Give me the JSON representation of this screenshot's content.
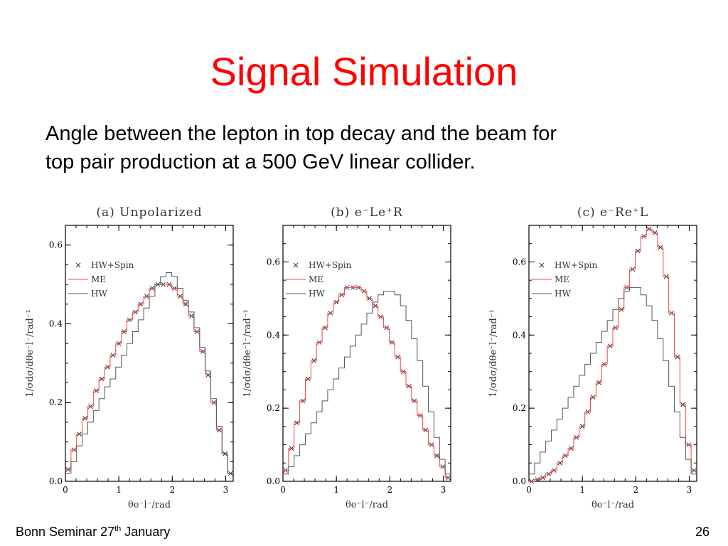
{
  "slide": {
    "title": "Signal Simulation",
    "subtitle_line1": "Angle between the lepton in top decay and the beam for",
    "subtitle_line2": "top pair production at a 500 GeV linear collider.",
    "footer_text": "Bonn Seminar 27",
    "footer_sup": "th",
    "footer_text2": " January",
    "page_number": "26"
  },
  "colors": {
    "title": "#ff0000",
    "me": "#ff4040",
    "hw": "#555555",
    "markers": "#333333"
  },
  "chart_data": [
    {
      "type": "line",
      "panel": "(a)",
      "title": "(a) Unpolarized",
      "xlabel": "θe⁻l⁻/rad",
      "ylabel": "1/σdσ/dθe⁻l⁻/rad⁻¹",
      "xlim": [
        0,
        3.14
      ],
      "ylim": [
        0,
        0.65
      ],
      "xticks": [
        0,
        1,
        2,
        3
      ],
      "yticks": [
        0.0,
        0.2,
        0.4,
        0.6
      ],
      "legend": [
        "HW+Spin",
        "ME",
        "HW"
      ],
      "legend_position": "top-left",
      "series": [
        {
          "name": "HW+Spin",
          "style": "markers",
          "x": [
            0.05,
            0.16,
            0.26,
            0.37,
            0.47,
            0.58,
            0.68,
            0.79,
            0.89,
            1.0,
            1.1,
            1.2,
            1.31,
            1.41,
            1.52,
            1.62,
            1.73,
            1.83,
            1.94,
            2.04,
            2.15,
            2.25,
            2.36,
            2.46,
            2.57,
            2.67,
            2.78,
            2.88,
            2.99,
            3.09
          ],
          "y": [
            0.03,
            0.08,
            0.12,
            0.16,
            0.19,
            0.23,
            0.26,
            0.29,
            0.32,
            0.35,
            0.38,
            0.41,
            0.43,
            0.45,
            0.47,
            0.49,
            0.5,
            0.5,
            0.5,
            0.49,
            0.47,
            0.45,
            0.42,
            0.38,
            0.33,
            0.27,
            0.2,
            0.13,
            0.07,
            0.02
          ]
        },
        {
          "name": "ME",
          "style": "step",
          "x": [
            0.05,
            0.16,
            0.26,
            0.37,
            0.47,
            0.58,
            0.68,
            0.79,
            0.89,
            1.0,
            1.1,
            1.2,
            1.31,
            1.41,
            1.52,
            1.62,
            1.73,
            1.83,
            1.94,
            2.04,
            2.15,
            2.25,
            2.36,
            2.46,
            2.57,
            2.67,
            2.78,
            2.88,
            2.99,
            3.09
          ],
          "y": [
            0.03,
            0.08,
            0.12,
            0.16,
            0.19,
            0.23,
            0.26,
            0.29,
            0.32,
            0.35,
            0.38,
            0.41,
            0.43,
            0.45,
            0.47,
            0.49,
            0.5,
            0.5,
            0.5,
            0.49,
            0.47,
            0.45,
            0.42,
            0.38,
            0.33,
            0.27,
            0.2,
            0.13,
            0.07,
            0.02
          ]
        },
        {
          "name": "HW",
          "style": "step",
          "x": [
            0.05,
            0.16,
            0.26,
            0.37,
            0.47,
            0.58,
            0.68,
            0.79,
            0.89,
            1.0,
            1.1,
            1.2,
            1.31,
            1.41,
            1.52,
            1.62,
            1.73,
            1.83,
            1.94,
            2.04,
            2.15,
            2.25,
            2.36,
            2.46,
            2.57,
            2.67,
            2.78,
            2.88,
            2.99,
            3.09
          ],
          "y": [
            0.02,
            0.05,
            0.09,
            0.12,
            0.15,
            0.18,
            0.21,
            0.24,
            0.26,
            0.29,
            0.32,
            0.35,
            0.38,
            0.41,
            0.44,
            0.47,
            0.5,
            0.52,
            0.53,
            0.52,
            0.49,
            0.46,
            0.43,
            0.39,
            0.34,
            0.28,
            0.21,
            0.14,
            0.07,
            0.02
          ]
        }
      ]
    },
    {
      "type": "line",
      "panel": "(b)",
      "title": "(b) e⁻Le⁺R",
      "xlabel": "θe⁻l⁻/rad",
      "ylabel": "1/σdσ/dθe⁻l⁻/rad⁻¹",
      "xlim": [
        0,
        3.14
      ],
      "ylim": [
        0,
        0.7
      ],
      "xticks": [
        0,
        1,
        2,
        3
      ],
      "yticks": [
        0.0,
        0.2,
        0.4,
        0.6
      ],
      "legend": [
        "HW+Spin",
        "ME",
        "HW"
      ],
      "legend_position": "top-left",
      "series": [
        {
          "name": "HW+Spin",
          "style": "markers",
          "x": [
            0.05,
            0.16,
            0.26,
            0.37,
            0.47,
            0.58,
            0.68,
            0.79,
            0.89,
            1.0,
            1.1,
            1.2,
            1.31,
            1.41,
            1.52,
            1.62,
            1.73,
            1.83,
            1.94,
            2.04,
            2.15,
            2.25,
            2.36,
            2.46,
            2.57,
            2.67,
            2.78,
            2.88,
            2.99,
            3.09
          ],
          "y": [
            0.03,
            0.09,
            0.16,
            0.22,
            0.28,
            0.33,
            0.38,
            0.42,
            0.46,
            0.49,
            0.51,
            0.53,
            0.53,
            0.53,
            0.52,
            0.5,
            0.48,
            0.45,
            0.42,
            0.38,
            0.34,
            0.3,
            0.26,
            0.22,
            0.18,
            0.14,
            0.1,
            0.07,
            0.04,
            0.01
          ]
        },
        {
          "name": "ME",
          "style": "step",
          "x": [
            0.05,
            0.16,
            0.26,
            0.37,
            0.47,
            0.58,
            0.68,
            0.79,
            0.89,
            1.0,
            1.1,
            1.2,
            1.31,
            1.41,
            1.52,
            1.62,
            1.73,
            1.83,
            1.94,
            2.04,
            2.15,
            2.25,
            2.36,
            2.46,
            2.57,
            2.67,
            2.78,
            2.88,
            2.99,
            3.09
          ],
          "y": [
            0.03,
            0.09,
            0.16,
            0.22,
            0.28,
            0.33,
            0.38,
            0.42,
            0.46,
            0.49,
            0.51,
            0.53,
            0.53,
            0.53,
            0.52,
            0.5,
            0.48,
            0.45,
            0.42,
            0.38,
            0.34,
            0.3,
            0.26,
            0.22,
            0.18,
            0.14,
            0.1,
            0.07,
            0.04,
            0.01
          ]
        },
        {
          "name": "HW",
          "style": "step",
          "x": [
            0.05,
            0.16,
            0.26,
            0.37,
            0.47,
            0.58,
            0.68,
            0.79,
            0.89,
            1.0,
            1.1,
            1.2,
            1.31,
            1.41,
            1.52,
            1.62,
            1.73,
            1.83,
            1.94,
            2.04,
            2.15,
            2.25,
            2.36,
            2.46,
            2.57,
            2.67,
            2.78,
            2.88,
            2.99,
            3.09
          ],
          "y": [
            0.02,
            0.04,
            0.07,
            0.1,
            0.13,
            0.16,
            0.19,
            0.22,
            0.25,
            0.28,
            0.31,
            0.34,
            0.37,
            0.4,
            0.43,
            0.46,
            0.49,
            0.51,
            0.52,
            0.52,
            0.51,
            0.48,
            0.44,
            0.39,
            0.33,
            0.26,
            0.19,
            0.12,
            0.06,
            0.02
          ]
        }
      ]
    },
    {
      "type": "line",
      "panel": "(c)",
      "title": "(c) e⁻Re⁺L",
      "xlabel": "θe⁻l⁻/rad",
      "ylabel": "1/σdσ/dθe⁻l⁻/rad⁻¹",
      "xlim": [
        0,
        3.14
      ],
      "ylim": [
        0,
        0.7
      ],
      "xticks": [
        0,
        1,
        2,
        3
      ],
      "yticks": [
        0.0,
        0.2,
        0.4,
        0.6
      ],
      "legend": [
        "HW+Spin",
        "ME",
        "HW"
      ],
      "legend_position": "top-left",
      "series": [
        {
          "name": "HW+Spin",
          "style": "markers",
          "x": [
            0.05,
            0.16,
            0.26,
            0.37,
            0.47,
            0.58,
            0.68,
            0.79,
            0.89,
            1.0,
            1.1,
            1.2,
            1.31,
            1.41,
            1.52,
            1.62,
            1.73,
            1.83,
            1.94,
            2.04,
            2.15,
            2.25,
            2.36,
            2.46,
            2.57,
            2.67,
            2.78,
            2.88,
            2.99,
            3.09
          ],
          "y": [
            0.0,
            0.005,
            0.01,
            0.02,
            0.03,
            0.05,
            0.07,
            0.09,
            0.12,
            0.15,
            0.19,
            0.23,
            0.27,
            0.32,
            0.37,
            0.42,
            0.47,
            0.53,
            0.58,
            0.63,
            0.67,
            0.69,
            0.68,
            0.64,
            0.56,
            0.46,
            0.34,
            0.21,
            0.1,
            0.03
          ]
        },
        {
          "name": "ME",
          "style": "step",
          "x": [
            0.05,
            0.16,
            0.26,
            0.37,
            0.47,
            0.58,
            0.68,
            0.79,
            0.89,
            1.0,
            1.1,
            1.2,
            1.31,
            1.41,
            1.52,
            1.62,
            1.73,
            1.83,
            1.94,
            2.04,
            2.15,
            2.25,
            2.36,
            2.46,
            2.57,
            2.67,
            2.78,
            2.88,
            2.99,
            3.09
          ],
          "y": [
            0.0,
            0.005,
            0.01,
            0.02,
            0.03,
            0.05,
            0.07,
            0.09,
            0.12,
            0.15,
            0.19,
            0.23,
            0.27,
            0.32,
            0.37,
            0.42,
            0.47,
            0.53,
            0.58,
            0.63,
            0.67,
            0.69,
            0.68,
            0.64,
            0.56,
            0.46,
            0.34,
            0.21,
            0.1,
            0.03
          ]
        },
        {
          "name": "HW",
          "style": "step",
          "x": [
            0.05,
            0.16,
            0.26,
            0.37,
            0.47,
            0.58,
            0.68,
            0.79,
            0.89,
            1.0,
            1.1,
            1.2,
            1.31,
            1.41,
            1.52,
            1.62,
            1.73,
            1.83,
            1.94,
            2.04,
            2.15,
            2.25,
            2.36,
            2.46,
            2.57,
            2.67,
            2.78,
            2.88,
            2.99,
            3.09
          ],
          "y": [
            0.02,
            0.05,
            0.08,
            0.11,
            0.14,
            0.17,
            0.2,
            0.23,
            0.26,
            0.29,
            0.32,
            0.35,
            0.38,
            0.41,
            0.44,
            0.47,
            0.5,
            0.52,
            0.53,
            0.53,
            0.51,
            0.48,
            0.44,
            0.39,
            0.33,
            0.26,
            0.19,
            0.12,
            0.06,
            0.02
          ]
        }
      ]
    }
  ]
}
